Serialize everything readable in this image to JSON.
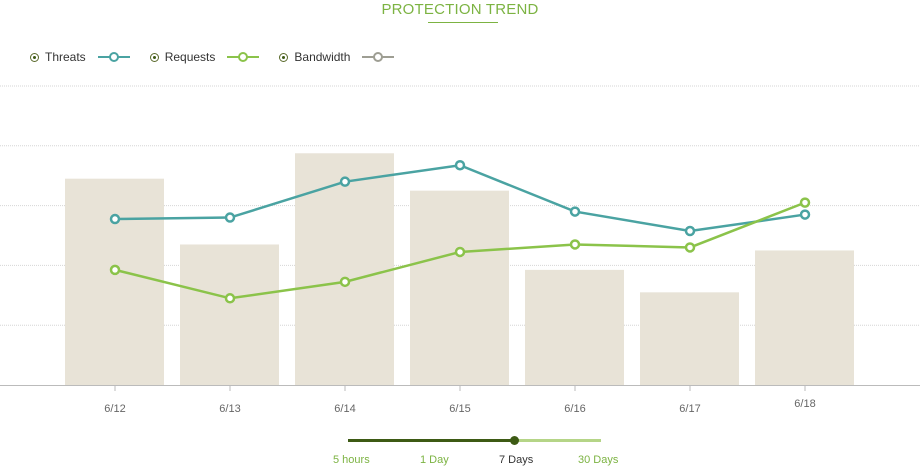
{
  "title": "PROTECTION TREND",
  "colors": {
    "title": "#7cb342",
    "threats": "#4aa3a2",
    "requests": "#8bc34a",
    "bandwidth": "#9e9e93",
    "bars": "#e8e3d7",
    "grid": "#d6d6d6",
    "axis": "#bbbbbb",
    "range_inactive": "#7cb342",
    "range_active": "#333333"
  },
  "legend": [
    {
      "label": "Threats",
      "series": "threats"
    },
    {
      "label": "Requests",
      "series": "requests"
    },
    {
      "label": "Bandwidth",
      "series": "bandwidth"
    }
  ],
  "chart_data": {
    "type": "bar",
    "categories": [
      "6/12",
      "6/13",
      "6/14",
      "6/15",
      "6/16",
      "6/17",
      "6/18"
    ],
    "ylim": [
      0,
      100
    ],
    "grid": true,
    "legend_position": "top-left",
    "series": [
      {
        "name": "Bandwidth",
        "type": "bar",
        "values": [
          69,
          47,
          77.5,
          65,
          38.5,
          31,
          45
        ]
      },
      {
        "name": "Threats",
        "type": "line",
        "values": [
          55.5,
          56,
          68,
          73.5,
          58,
          51.5,
          57
        ]
      },
      {
        "name": "Requests",
        "type": "line",
        "values": [
          38.5,
          29,
          34.5,
          44.5,
          47,
          46,
          61
        ]
      }
    ]
  },
  "time_range": {
    "options": [
      "5 hours",
      "1 Day",
      "7 Days",
      "30 Days"
    ],
    "selected": "7 Days"
  }
}
